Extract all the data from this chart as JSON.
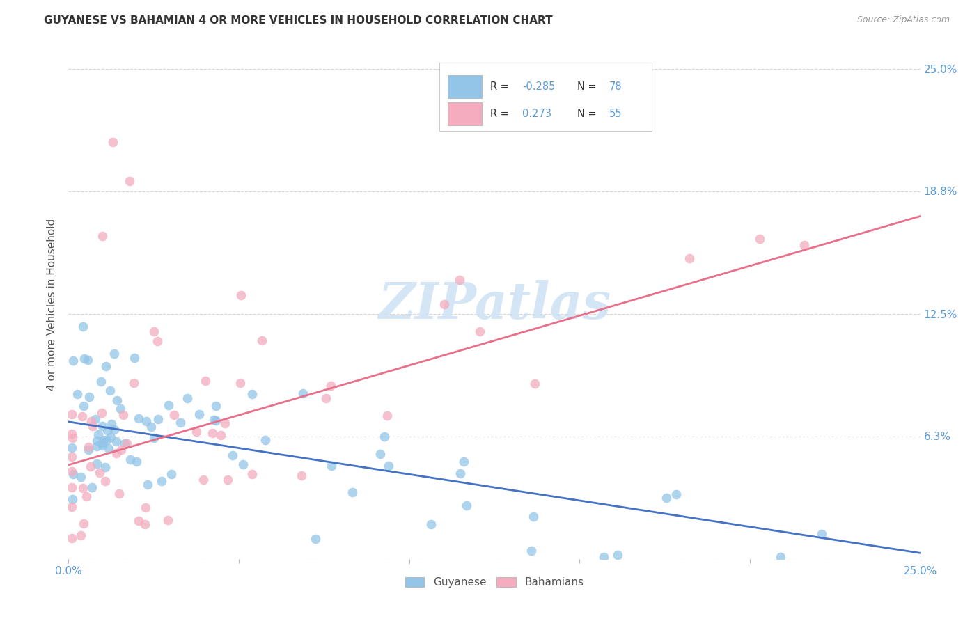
{
  "title": "GUYANESE VS BAHAMIAN 4 OR MORE VEHICLES IN HOUSEHOLD CORRELATION CHART",
  "source": "Source: ZipAtlas.com",
  "ylabel": "4 or more Vehicles in Household",
  "xlim": [
    0.0,
    0.25
  ],
  "ylim": [
    0.0,
    0.26
  ],
  "guyanese_color": "#92C5E8",
  "bahamian_color": "#F4ACBE",
  "guyanese_line_color": "#4472C4",
  "bahamian_line_color": "#E8708A",
  "R_guyanese": -0.285,
  "N_guyanese": 78,
  "R_bahamian": 0.273,
  "N_bahamian": 55,
  "background_color": "#FFFFFF",
  "grid_color": "#CCCCCC",
  "watermark_text": "ZIPatlas",
  "watermark_color": "#D0E4F4",
  "legend_label_guyanese": "Guyanese",
  "legend_label_bahamian": "Bahamians",
  "guy_line_x0": 0.0,
  "guy_line_y0": 0.07,
  "guy_line_x1": 0.25,
  "guy_line_y1": 0.003,
  "bah_line_x0": 0.0,
  "bah_line_y0": 0.048,
  "bah_line_x1": 0.25,
  "bah_line_y1": 0.175
}
